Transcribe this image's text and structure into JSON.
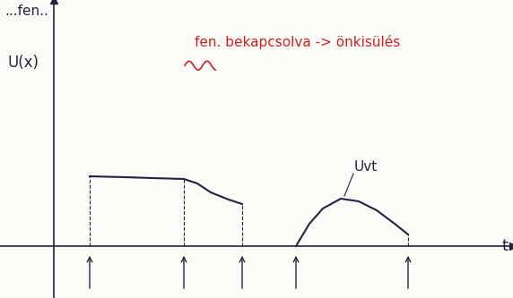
{
  "chart_data": {
    "type": "line",
    "title": "...fen..",
    "y_label": "U(x)",
    "x_label": "t",
    "annotations": [
      {
        "text": "fen. bekapcsolva -> önkisülés",
        "color": "#cc2222"
      }
    ],
    "series": [
      {
        "color": "#23233f",
        "x": [
          40,
          80,
          110,
          145,
          160,
          175,
          195,
          210
        ],
        "values": [
          78,
          77,
          76,
          75,
          70,
          60,
          52,
          47
        ]
      },
      {
        "name": "Uvt",
        "color": "#23233f",
        "x": [
          270,
          285,
          300,
          320,
          340,
          360,
          380,
          395
        ],
        "values": [
          0,
          25,
          42,
          53,
          50,
          40,
          25,
          13
        ]
      }
    ],
    "markers_x": [
      40,
      145,
      210,
      270,
      395
    ],
    "xlim": [
      -60,
      512
    ],
    "ylim": [
      -58,
      275
    ],
    "tick_labels": false
  }
}
